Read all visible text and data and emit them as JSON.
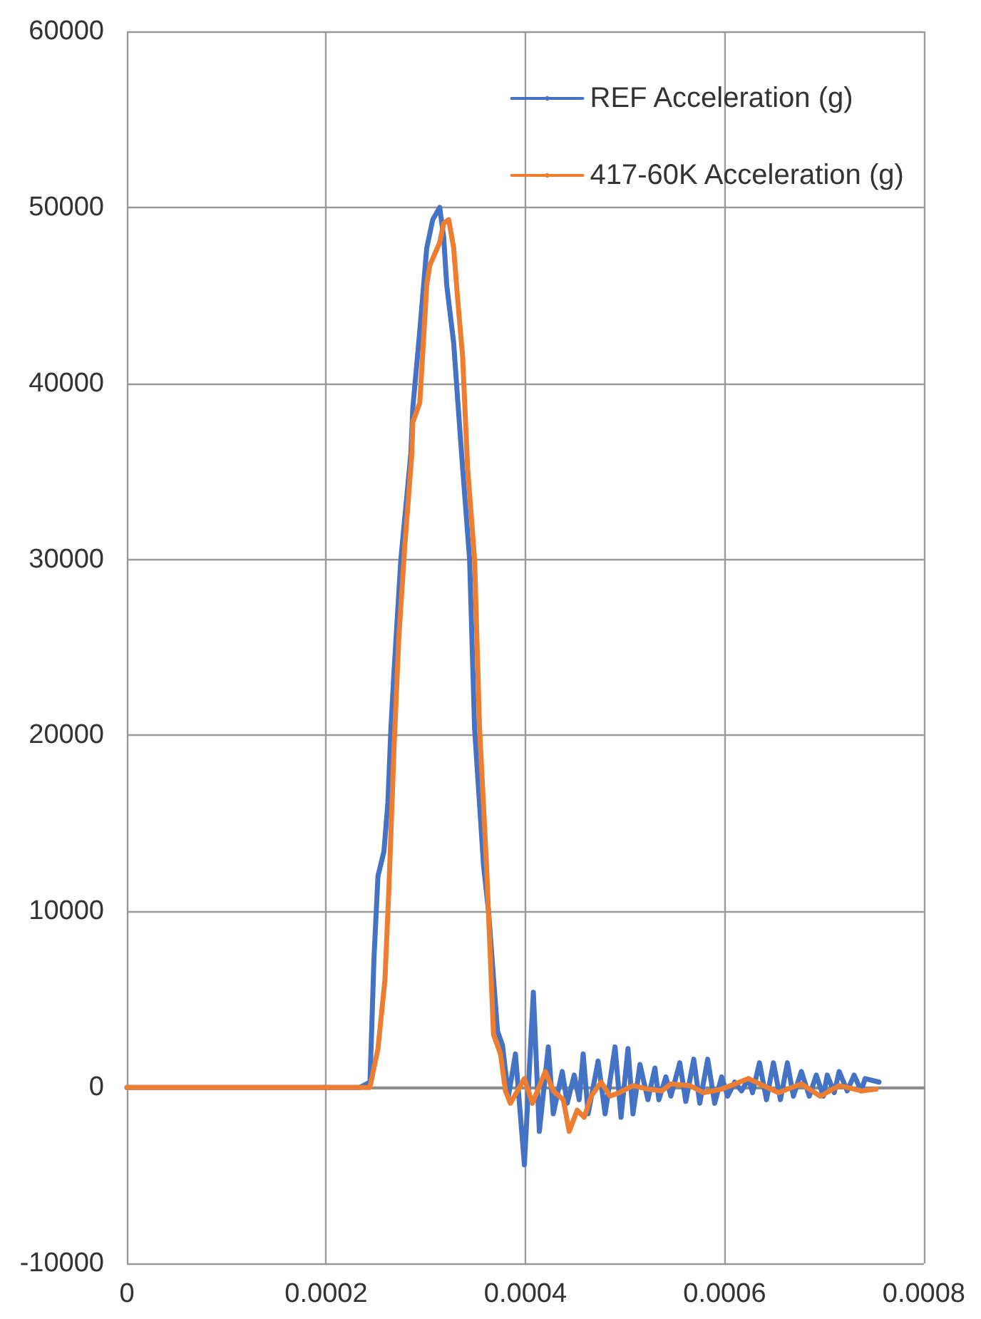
{
  "chart_data": {
    "type": "line",
    "xlim": [
      0,
      0.0008
    ],
    "xticks": [
      0,
      0.0002,
      0.0004,
      0.0006,
      0.0008
    ],
    "ylim": [
      -10000,
      60000
    ],
    "yticks": [
      -10000,
      0,
      10000,
      20000,
      30000,
      40000,
      50000,
      60000
    ],
    "grid": true,
    "legend": "top right",
    "marker": "none",
    "line_style": "solid",
    "series": [
      {
        "name": "REF Acceleration (g)",
        "color": "#4472c4",
        "x": [
          0,
          0.000234,
          0.000244,
          0.000248,
          0.000252,
          0.000258,
          0.000262,
          0.000265,
          0.000268,
          0.000275,
          0.000285,
          0.000287,
          0.000294,
          0.000301,
          0.000307,
          0.000314,
          0.000318,
          0.000321,
          0.000328,
          0.000332,
          0.000337,
          0.000344,
          0.000349,
          0.000358,
          0.000363,
          0.000372,
          0.000377,
          0.000383,
          0.00039,
          0.000399,
          0.000408,
          0.000414,
          0.000423,
          0.000428,
          0.000437,
          0.000442,
          0.000449,
          0.000454,
          0.000458,
          0.000463,
          0.000473,
          0.00048,
          0.00049,
          0.000496,
          0.000503,
          0.000508,
          0.000515,
          0.000523,
          0.00053,
          0.000534,
          0.000541,
          0.000546,
          0.000555,
          0.000561,
          0.000569,
          0.000575,
          0.000583,
          0.00059,
          0.000597,
          0.000603,
          0.00061,
          0.000617,
          0.000624,
          0.000628,
          0.000635,
          0.000642,
          0.000649,
          0.000656,
          0.000663,
          0.000669,
          0.000677,
          0.000685,
          0.000692,
          0.000699,
          0.000703,
          0.00071,
          0.000715,
          0.000723,
          0.00073,
          0.000737,
          0.000741,
          0.000755
        ],
        "values": [
          0,
          0,
          300,
          7300,
          12000,
          13400,
          16200,
          20400,
          23500,
          30000,
          36000,
          38600,
          43000,
          47700,
          49300,
          50000,
          48300,
          45600,
          42300,
          39100,
          35200,
          30000,
          20400,
          12600,
          10000,
          3200,
          2400,
          -500,
          1900,
          -4400,
          5400,
          -2500,
          2300,
          -1500,
          900,
          -900,
          700,
          -700,
          1900,
          -1500,
          1500,
          -1500,
          2300,
          -1700,
          2200,
          -1500,
          1300,
          -700,
          1100,
          -700,
          600,
          -500,
          1400,
          -800,
          1600,
          -900,
          1600,
          -900,
          600,
          -500,
          300,
          -200,
          500,
          -300,
          1400,
          -700,
          1400,
          -700,
          1400,
          -500,
          900,
          -500,
          700,
          -500,
          700,
          -300,
          900,
          -200,
          700,
          -200,
          500,
          300
        ]
      },
      {
        "name": "417-60K Acceleration (g)",
        "color": "#ed7d31",
        "x": [
          0,
          0.000244,
          0.000252,
          0.000259,
          0.000263,
          0.000268,
          0.000273,
          0.000279,
          0.000286,
          0.000287,
          0.000294,
          0.000301,
          0.000304,
          0.000314,
          0.000318,
          0.000323,
          0.000328,
          0.000332,
          0.000337,
          0.000342,
          0.000349,
          0.000354,
          0.000361,
          0.000368,
          0.000375,
          0.00038,
          0.000385,
          0.000399,
          0.000407,
          0.00042,
          0.000428,
          0.000438,
          0.000444,
          0.000452,
          0.000459,
          0.000466,
          0.000476,
          0.000485,
          0.000494,
          0.000508,
          0.000523,
          0.000537,
          0.000546,
          0.000565,
          0.000579,
          0.000597,
          0.000624,
          0.000635,
          0.000654,
          0.000677,
          0.000696,
          0.000715,
          0.000738,
          0.000752
        ],
        "values": [
          0,
          0,
          2200,
          6100,
          11300,
          19100,
          25600,
          30800,
          36000,
          37800,
          38900,
          45600,
          46700,
          48000,
          49100,
          49300,
          47700,
          44800,
          41500,
          35200,
          30000,
          20400,
          12600,
          3000,
          1900,
          -200,
          -900,
          500,
          -900,
          900,
          -200,
          -700,
          -2500,
          -1300,
          -1700,
          -500,
          300,
          -500,
          -300,
          100,
          -100,
          -200,
          200,
          100,
          -300,
          -100,
          500,
          200,
          -300,
          200,
          -500,
          100,
          -200,
          -100
        ]
      }
    ]
  }
}
